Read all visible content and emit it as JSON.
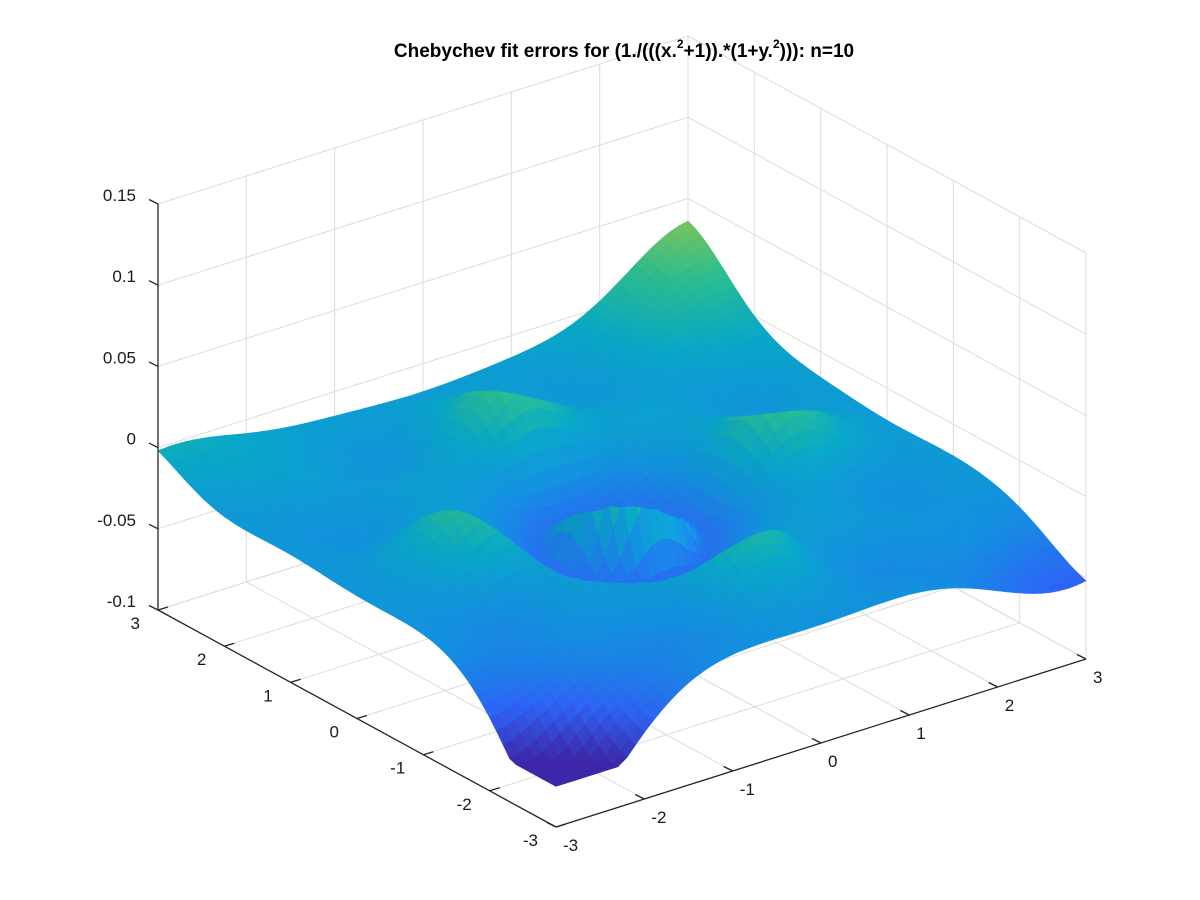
{
  "chart_data": {
    "type": "surface",
    "title": {
      "part1": "Chebychev fit errors for (1./(((x.",
      "sup1": "2",
      "part2": "+1)).*(1+y.",
      "sup2": "2",
      "part3": "))): n=10"
    },
    "xlabel": "",
    "ylabel": "",
    "zlabel": "",
    "xlim": [
      -3,
      3
    ],
    "ylim": [
      -3,
      3
    ],
    "zlim": [
      -0.1,
      0.15
    ],
    "x_ticks": [
      "-3",
      "-2",
      "-1",
      "0",
      "1",
      "2",
      "3"
    ],
    "y_ticks": [
      "-3",
      "-2",
      "-1",
      "0",
      "1",
      "2",
      "3"
    ],
    "z_ticks": [
      "-0.1",
      "-0.05",
      "0",
      "0.05",
      "0.1",
      "0.15"
    ],
    "x_tick_values": [
      -3,
      -2,
      -1,
      0,
      1,
      2,
      3
    ],
    "y_tick_values": [
      -3,
      -2,
      -1,
      0,
      1,
      2,
      3
    ],
    "z_tick_values": [
      -0.1,
      -0.05,
      0,
      0.05,
      0.1,
      0.15
    ],
    "grid": true,
    "colormap": "parula",
    "colormap_stops": [
      "#3e26a8",
      "#2d64f5",
      "#148fdf",
      "#08a7c6",
      "#2bbc8e",
      "#86c454",
      "#d6bc3a",
      "#fdd126",
      "#f9fb15"
    ],
    "surface": {
      "n": 10,
      "x_range": [
        -3,
        3
      ],
      "y_range": [
        -3,
        3
      ],
      "peak": {
        "x": 0,
        "y": 0,
        "z": 0.118
      },
      "trough_min_z": -0.075,
      "side_bumps_z": 0.048,
      "corner_values": [
        {
          "x": -3,
          "y": -3,
          "z": -0.108
        },
        {
          "x": 3,
          "y": -3,
          "z": -0.052
        },
        {
          "x": 3,
          "y": 3,
          "z": 0.036
        },
        {
          "x": -3,
          "y": 3,
          "z": -0.002
        }
      ]
    }
  }
}
